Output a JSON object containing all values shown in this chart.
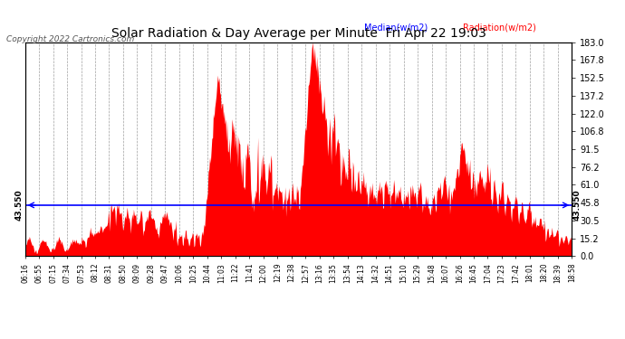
{
  "title": "Solar Radiation & Day Average per Minute  Fri Apr 22 19:03",
  "copyright": "Copyright 2022 Cartronics.com",
  "median_label": "Median(w/m2)",
  "radiation_label": "Radiation(w/m2)",
  "median_value": 43.55,
  "y_max": 183.0,
  "y_min": 0.0,
  "y_ticks": [
    0.0,
    15.2,
    30.5,
    45.8,
    61.0,
    76.2,
    91.5,
    106.8,
    122.0,
    137.2,
    152.5,
    167.8,
    183.0
  ],
  "background_color": "#ffffff",
  "grid_color": "#aaaaaa",
  "median_color": "#0000ff",
  "radiation_color": "#ff0000",
  "title_color": "#000000",
  "copyright_color": "#000000",
  "median_label_color": "#0000ff",
  "radiation_label_color": "#ff0000",
  "x_tick_labels": [
    "06:16",
    "06:55",
    "07:15",
    "07:34",
    "07:53",
    "08:12",
    "08:31",
    "08:50",
    "09:09",
    "09:28",
    "09:47",
    "10:06",
    "10:25",
    "10:44",
    "11:03",
    "11:22",
    "11:41",
    "12:00",
    "12:19",
    "12:38",
    "12:57",
    "13:16",
    "13:35",
    "13:54",
    "14:13",
    "14:32",
    "14:51",
    "15:10",
    "15:29",
    "15:48",
    "16:07",
    "16:26",
    "16:45",
    "17:04",
    "17:23",
    "17:42",
    "18:01",
    "18:20",
    "18:39",
    "18:58"
  ]
}
